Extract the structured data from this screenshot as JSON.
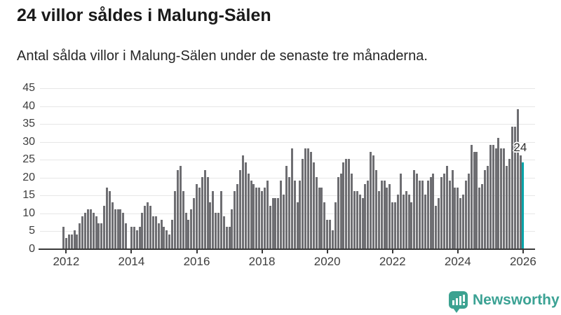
{
  "header": {
    "title": "24 villor såldes i Malung-Sälen",
    "subtitle": "Antal sålda villor i Malung-Sälen under de senaste tre månaderna."
  },
  "branding": {
    "name": "Newsworthy",
    "logo_icon": "speech-bubble-bar-chart-icon"
  },
  "colors": {
    "bar": "#6e6e72",
    "highlight": "#00a3a8",
    "brand_teal": "#3ba294",
    "grid": "#e7e7e7",
    "axis": "#3a3a3a",
    "text": "#1a1a1a"
  },
  "chart_data": {
    "type": "bar",
    "title": "24 villor såldes i Malung-Sälen",
    "subtitle": "Antal sålda villor i Malung-Sälen under de senaste tre månaderna.",
    "ylabel": "",
    "xlabel": "",
    "frequency": "monthly",
    "start_month": "2011-12",
    "end_month": "2026-01",
    "ylim": [
      0,
      45
    ],
    "grid": true,
    "y_ticks": [
      0,
      5,
      10,
      15,
      20,
      25,
      30,
      35,
      40,
      45
    ],
    "x_tick_labels": [
      "2012",
      "2014",
      "2016",
      "2018",
      "2020",
      "2022",
      "2024",
      "2026"
    ],
    "x_tick_indices": [
      1,
      25,
      49,
      73,
      97,
      121,
      145,
      169
    ],
    "values": [
      6,
      3,
      4,
      4,
      5,
      4,
      7,
      9,
      10,
      11,
      11,
      10,
      9,
      7,
      7,
      12,
      17,
      16,
      13,
      11,
      11,
      11,
      10,
      7,
      0,
      6,
      6,
      5,
      6,
      10,
      12,
      13,
      12,
      9,
      9,
      7,
      8,
      6,
      5,
      4,
      8,
      16,
      22,
      23,
      16,
      10,
      8,
      11,
      14,
      18,
      17,
      20,
      22,
      20,
      13,
      16,
      10,
      10,
      16,
      9,
      6,
      6,
      11,
      16,
      18,
      22,
      26,
      24,
      21,
      19,
      18,
      17,
      17,
      16,
      17,
      19,
      12,
      14,
      14,
      14,
      19,
      15,
      23,
      20,
      28,
      19,
      13,
      19,
      25,
      28,
      28,
      27,
      24,
      20,
      17,
      17,
      13,
      8,
      8,
      5,
      13,
      20,
      21,
      24,
      25,
      25,
      21,
      16,
      16,
      15,
      14,
      18,
      19,
      27,
      26,
      22,
      16,
      19,
      19,
      17,
      18,
      13,
      13,
      15,
      21,
      15,
      16,
      15,
      13,
      22,
      21,
      19,
      19,
      15,
      19,
      20,
      21,
      12,
      14,
      20,
      21,
      23,
      19,
      22,
      17,
      17,
      14,
      15,
      19,
      21,
      29,
      27,
      27,
      17,
      18,
      22,
      23,
      29,
      29,
      28,
      31,
      28,
      28,
      23,
      25,
      34,
      34,
      39,
      26,
      24
    ],
    "highlight_index": 169,
    "highlight_value_label": "24",
    "legend": "none"
  }
}
